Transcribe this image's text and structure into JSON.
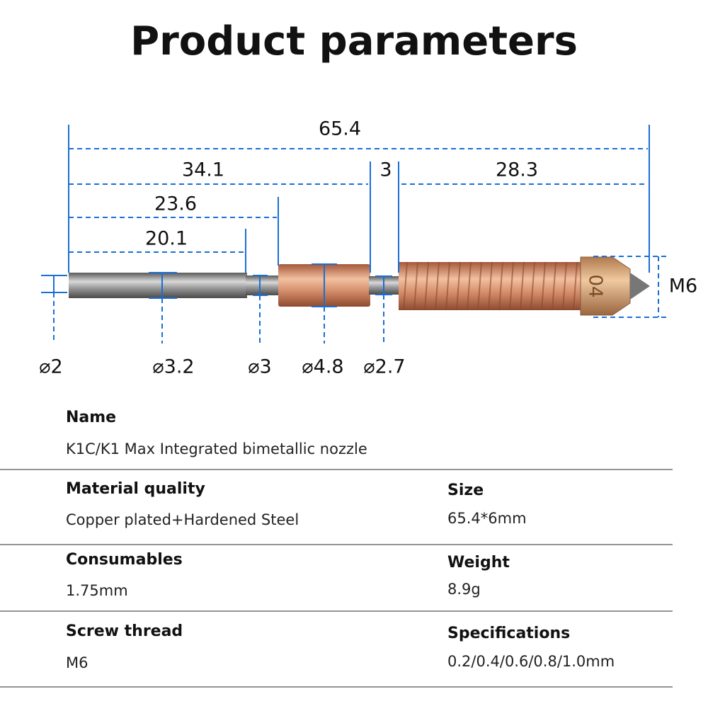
{
  "title": "Product parameters",
  "dimensions": {
    "lengths": [
      "65.4",
      "34.1",
      "3",
      "28.3",
      "23.6",
      "20.1"
    ],
    "diameters": [
      "⌀2",
      "⌀3.2",
      "⌀3",
      "⌀4.8",
      "⌀2.7"
    ],
    "thread": "M6",
    "nozzle_marking": "04"
  },
  "specs": {
    "name": {
      "label": "Name",
      "value": "K1C/K1 Max Integrated bimetallic nozzle"
    },
    "rows": [
      [
        {
          "label": "Material quality",
          "value": "Copper plated+Hardened Steel"
        },
        {
          "label": "Size",
          "value": "65.4*6mm"
        }
      ],
      [
        {
          "label": "Consumables",
          "value": "1.75mm"
        },
        {
          "label": "Weight",
          "value": "8.9g"
        }
      ],
      [
        {
          "label": "Screw thread",
          "value": "M6"
        },
        {
          "label": "Specifications",
          "value": "0.2/0.4/0.6/0.8/1.0mm"
        }
      ]
    ]
  }
}
